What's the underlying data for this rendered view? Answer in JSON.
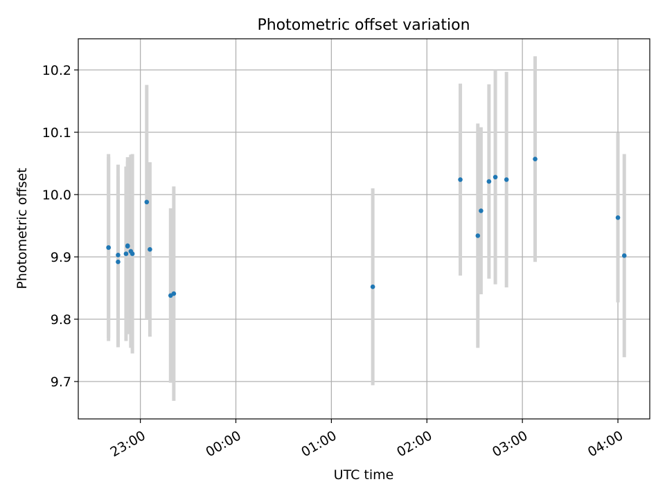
{
  "chart_data": {
    "type": "scatter",
    "title": "Photometric offset variation",
    "xlabel": "UTC time",
    "ylabel": "Photometric offset",
    "grid": true,
    "xlim": [
      "22:21",
      "04:20"
    ],
    "ylim": [
      9.64,
      10.25
    ],
    "x_ticks": [
      {
        "time": "23:00",
        "label": "23:00"
      },
      {
        "time": "00:00",
        "label": "00:00"
      },
      {
        "time": "01:00",
        "label": "01:00"
      },
      {
        "time": "02:00",
        "label": "02:00"
      },
      {
        "time": "03:00",
        "label": "03:00"
      },
      {
        "time": "04:00",
        "label": "04:00"
      }
    ],
    "y_ticks": [
      {
        "value": 9.7,
        "label": "9.7"
      },
      {
        "value": 9.8,
        "label": "9.8"
      },
      {
        "value": 9.9,
        "label": "9.9"
      },
      {
        "value": 10.0,
        "label": "10.0"
      },
      {
        "value": 10.1,
        "label": "10.1"
      },
      {
        "value": 10.2,
        "label": "10.2"
      }
    ],
    "marker_color": "#1f77b4",
    "errorbar_color": "#d3d3d3",
    "points": [
      {
        "time": "22:40",
        "y": 9.915,
        "err": 0.15
      },
      {
        "time": "22:40",
        "y": 9.915,
        "err": 0.145
      },
      {
        "time": "22:46",
        "y": 9.892,
        "err": 0.137
      },
      {
        "time": "22:46",
        "y": 9.903,
        "err": 0.145
      },
      {
        "time": "22:51",
        "y": 9.905,
        "err": 0.14
      },
      {
        "time": "22:52",
        "y": 9.918,
        "err": 0.142
      },
      {
        "time": "22:52",
        "y": 9.917,
        "err": 0.136
      },
      {
        "time": "22:54",
        "y": 9.909,
        "err": 0.155
      },
      {
        "time": "22:55",
        "y": 9.905,
        "err": 0.16
      },
      {
        "time": "23:04",
        "y": 9.988,
        "err": 0.188
      },
      {
        "time": "23:06",
        "y": 9.912,
        "err": 0.14
      },
      {
        "time": "23:19",
        "y": 9.838,
        "err": 0.14
      },
      {
        "time": "23:21",
        "y": 9.841,
        "err": 0.172
      },
      {
        "time": "01:26",
        "y": 9.852,
        "err": 0.158
      },
      {
        "time": "02:21",
        "y": 10.024,
        "err": 0.154
      },
      {
        "time": "02:32",
        "y": 9.934,
        "err": 0.18
      },
      {
        "time": "02:34",
        "y": 9.974,
        "err": 0.134
      },
      {
        "time": "02:39",
        "y": 10.021,
        "err": 0.156
      },
      {
        "time": "02:43",
        "y": 10.028,
        "err": 0.172
      },
      {
        "time": "02:50",
        "y": 10.024,
        "err": 0.173
      },
      {
        "time": "03:08",
        "y": 10.057,
        "err": 0.165
      },
      {
        "time": "04:00",
        "y": 9.963,
        "err": 0.136
      },
      {
        "time": "04:04",
        "y": 9.902,
        "err": 0.163
      }
    ]
  }
}
